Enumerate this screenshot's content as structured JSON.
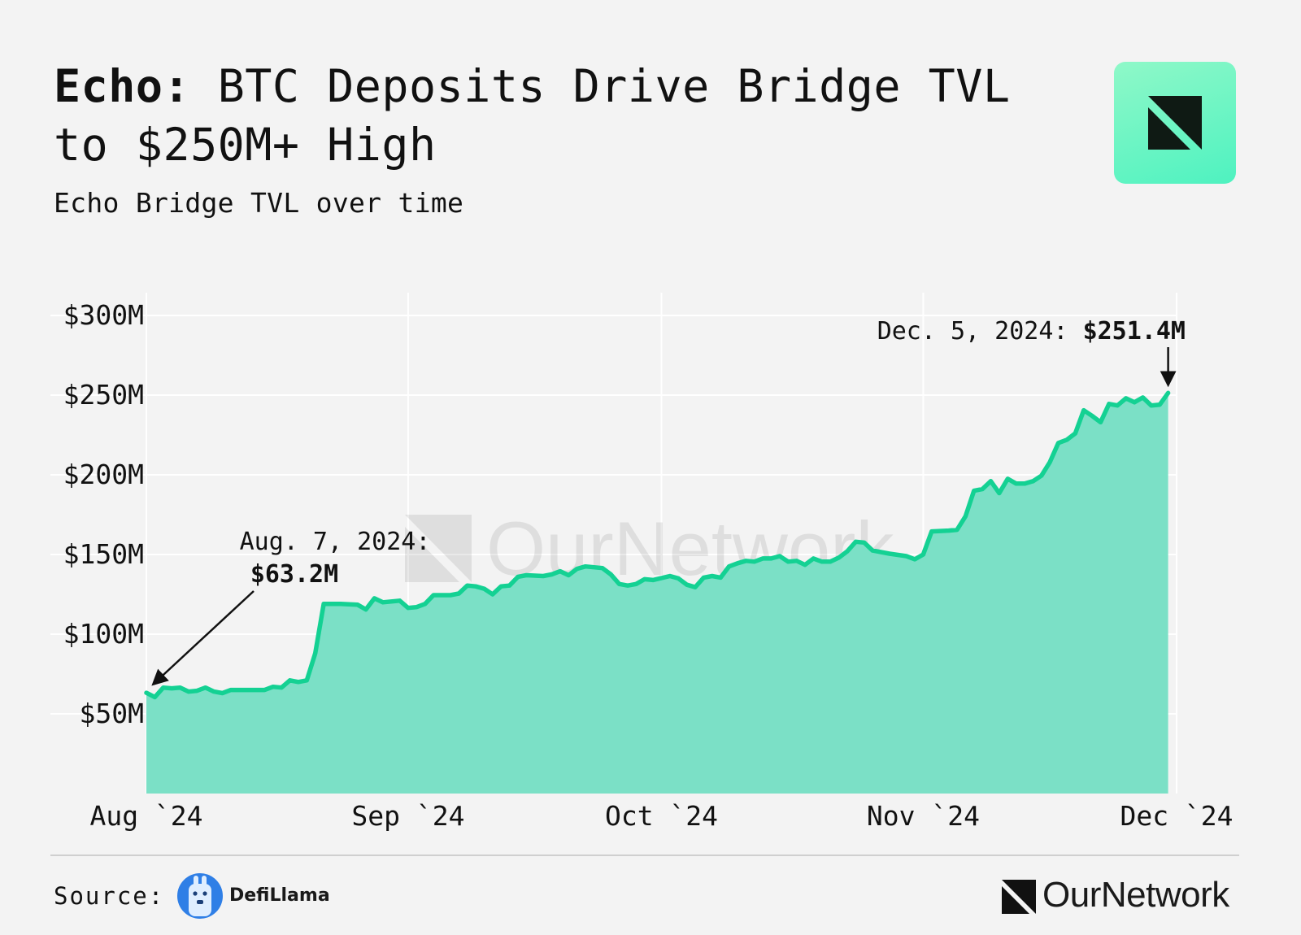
{
  "header": {
    "title_bold": "Echo:",
    "title_rest": " BTC Deposits Drive Bridge TVL to $250M+ High",
    "subtitle": "Echo Bridge TVL over time"
  },
  "colors": {
    "line": "#14d193",
    "area": "#7be0c6",
    "grid": "#ffffff",
    "background": "#f3f3f3",
    "text": "#111111"
  },
  "watermark": {
    "text": "OurNetwork"
  },
  "chart_data": {
    "type": "area",
    "title": "Echo Bridge TVL over time",
    "xlabel": "",
    "ylabel": "",
    "x_ticks": [
      {
        "date": "2024-08-01",
        "label": "Aug `24"
      },
      {
        "date": "2024-09-01",
        "label": "Sep `24"
      },
      {
        "date": "2024-10-01",
        "label": "Oct `24"
      },
      {
        "date": "2024-11-01",
        "label": "Nov `24"
      },
      {
        "date": "2024-12-01",
        "label": "Dec `24"
      }
    ],
    "y_ticks": [
      {
        "value": 50,
        "label": "$50M"
      },
      {
        "value": 100,
        "label": "$100M"
      },
      {
        "value": 150,
        "label": "$150M"
      },
      {
        "value": 200,
        "label": "$200M"
      },
      {
        "value": 250,
        "label": "$250M"
      },
      {
        "value": 300,
        "label": "$300M"
      }
    ],
    "ylim": [
      0,
      300
    ],
    "xlim": [
      "2024-08-01",
      "2024-12-05"
    ],
    "y_unit": "$M",
    "grid": true,
    "series": [
      {
        "values": [
          [
            "2024-08-01",
            63.2
          ],
          [
            "2024-08-02",
            60.5
          ],
          [
            "2024-08-03",
            66.5
          ],
          [
            "2024-08-04",
            66.0
          ],
          [
            "2024-08-05",
            66.5
          ],
          [
            "2024-08-06",
            64.0
          ],
          [
            "2024-08-07",
            64.5
          ],
          [
            "2024-08-08",
            66.5
          ],
          [
            "2024-08-09",
            64.0
          ],
          [
            "2024-08-10",
            63.0
          ],
          [
            "2024-08-11",
            65.0
          ],
          [
            "2024-08-13",
            65.0
          ],
          [
            "2024-08-15",
            65.0
          ],
          [
            "2024-08-16",
            67.0
          ],
          [
            "2024-08-17",
            66.5
          ],
          [
            "2024-08-18",
            71.0
          ],
          [
            "2024-08-19",
            70.0
          ],
          [
            "2024-08-20",
            71.0
          ],
          [
            "2024-08-21",
            88.0
          ],
          [
            "2024-08-22",
            119.0
          ],
          [
            "2024-08-24",
            119.0
          ],
          [
            "2024-08-26",
            118.5
          ],
          [
            "2024-08-27",
            115.5
          ],
          [
            "2024-08-28",
            122.5
          ],
          [
            "2024-08-29",
            120.0
          ],
          [
            "2024-08-31",
            121.0
          ],
          [
            "2024-09-01",
            116.5
          ],
          [
            "2024-09-02",
            117.0
          ],
          [
            "2024-09-03",
            119.0
          ],
          [
            "2024-09-04",
            124.5
          ],
          [
            "2024-09-06",
            124.5
          ],
          [
            "2024-09-07",
            125.5
          ],
          [
            "2024-09-08",
            130.5
          ],
          [
            "2024-09-09",
            130.0
          ],
          [
            "2024-09-10",
            128.5
          ],
          [
            "2024-09-11",
            125.0
          ],
          [
            "2024-09-12",
            130.0
          ],
          [
            "2024-09-13",
            130.5
          ],
          [
            "2024-09-14",
            136.0
          ],
          [
            "2024-09-15",
            137.0
          ],
          [
            "2024-09-17",
            136.5
          ],
          [
            "2024-09-18",
            137.5
          ],
          [
            "2024-09-19",
            139.5
          ],
          [
            "2024-09-20",
            137.0
          ],
          [
            "2024-09-21",
            141.0
          ],
          [
            "2024-09-22",
            142.5
          ],
          [
            "2024-09-24",
            141.5
          ],
          [
            "2024-09-25",
            137.5
          ],
          [
            "2024-09-26",
            131.5
          ],
          [
            "2024-09-27",
            130.5
          ],
          [
            "2024-09-28",
            131.5
          ],
          [
            "2024-09-29",
            134.5
          ],
          [
            "2024-09-30",
            134.0
          ],
          [
            "2024-10-02",
            136.5
          ],
          [
            "2024-10-03",
            135.0
          ],
          [
            "2024-10-04",
            131.0
          ],
          [
            "2024-10-05",
            129.5
          ],
          [
            "2024-10-06",
            135.5
          ],
          [
            "2024-10-07",
            136.5
          ],
          [
            "2024-10-08",
            135.5
          ],
          [
            "2024-10-09",
            142.5
          ],
          [
            "2024-10-10",
            144.5
          ],
          [
            "2024-10-11",
            146.0
          ],
          [
            "2024-10-12",
            145.5
          ],
          [
            "2024-10-13",
            147.5
          ],
          [
            "2024-10-14",
            147.5
          ],
          [
            "2024-10-15",
            149.0
          ],
          [
            "2024-10-16",
            145.5
          ],
          [
            "2024-10-17",
            146.0
          ],
          [
            "2024-10-18",
            143.5
          ],
          [
            "2024-10-19",
            147.5
          ],
          [
            "2024-10-20",
            145.5
          ],
          [
            "2024-10-21",
            145.5
          ],
          [
            "2024-10-22",
            148.0
          ],
          [
            "2024-10-23",
            152.0
          ],
          [
            "2024-10-24",
            158.0
          ],
          [
            "2024-10-25",
            157.5
          ],
          [
            "2024-10-26",
            152.5
          ],
          [
            "2024-10-28",
            150.5
          ],
          [
            "2024-10-30",
            149.0
          ],
          [
            "2024-10-31",
            147.0
          ],
          [
            "2024-11-01",
            150.0
          ],
          [
            "2024-11-02",
            164.5
          ],
          [
            "2024-11-04",
            165.0
          ],
          [
            "2024-11-05",
            165.5
          ],
          [
            "2024-11-06",
            174.0
          ],
          [
            "2024-11-07",
            190.0
          ],
          [
            "2024-11-08",
            191.0
          ],
          [
            "2024-11-09",
            196.0
          ],
          [
            "2024-11-10",
            188.5
          ],
          [
            "2024-11-11",
            197.5
          ],
          [
            "2024-11-12",
            194.5
          ],
          [
            "2024-11-13",
            194.5
          ],
          [
            "2024-11-14",
            196.0
          ],
          [
            "2024-11-15",
            199.5
          ],
          [
            "2024-11-16",
            208.0
          ],
          [
            "2024-11-17",
            220.0
          ],
          [
            "2024-11-18",
            222.0
          ],
          [
            "2024-11-19",
            226.0
          ],
          [
            "2024-11-20",
            240.5
          ],
          [
            "2024-11-21",
            237.0
          ],
          [
            "2024-11-22",
            233.0
          ],
          [
            "2024-11-23",
            244.5
          ],
          [
            "2024-11-24",
            243.5
          ],
          [
            "2024-11-25",
            248.0
          ],
          [
            "2024-11-26",
            245.5
          ],
          [
            "2024-11-27",
            248.5
          ],
          [
            "2024-11-28",
            243.5
          ],
          [
            "2024-11-29",
            244.0
          ],
          [
            "2024-11-30",
            251.4
          ]
        ]
      }
    ],
    "annotations": [
      {
        "date": "2024-08-01",
        "value": 63.2,
        "label": "Aug. 7, 2024:",
        "value_label": "$63.2M"
      },
      {
        "date": "2024-11-30",
        "value": 251.4,
        "label": "Dec. 5, 2024:",
        "value_label": "$251.4M"
      }
    ]
  },
  "footer": {
    "source_label": "Source:",
    "source_name": "DefiLlama",
    "brand": "OurNetwork"
  }
}
